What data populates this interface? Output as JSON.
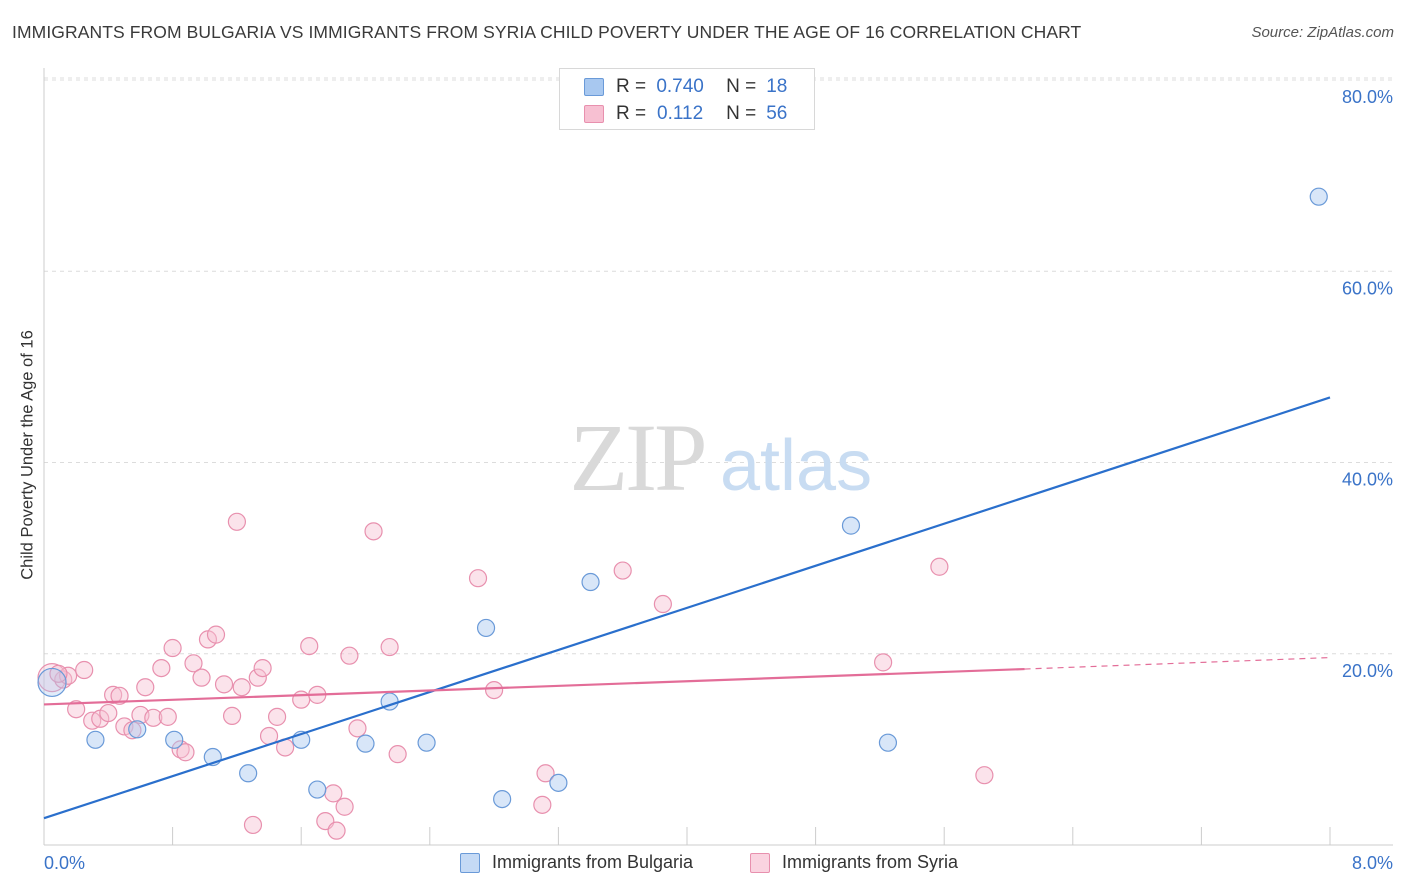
{
  "title": "IMMIGRANTS FROM BULGARIA VS IMMIGRANTS FROM SYRIA CHILD POVERTY UNDER THE AGE OF 16 CORRELATION CHART",
  "source": "Source: ZipAtlas.com",
  "watermark": {
    "zip": "ZIP",
    "atlas": "atlas"
  },
  "legend": {
    "r_label": "R =",
    "n_label": "N =",
    "rows": [
      {
        "r": "0.740",
        "n": "18",
        "color": "#a8c8f0",
        "border": "#6a9ad8"
      },
      {
        "r": "0.112",
        "n": "56",
        "color": "#f7c0d2",
        "border": "#e890ae"
      }
    ]
  },
  "bottom_legend": [
    {
      "label": "Immigrants from Bulgaria",
      "color": "#c5daf5",
      "border": "#6a9ad8"
    },
    {
      "label": "Immigrants from Syria",
      "color": "#fad3e0",
      "border": "#e890ae"
    }
  ],
  "chart_data": {
    "type": "scatter",
    "xlabel": "",
    "ylabel": "Child Poverty Under the Age of 16",
    "xlim": [
      0,
      8
    ],
    "ylim": [
      0,
      80
    ],
    "x_tick_labels": [
      "0.0%",
      "8.0%"
    ],
    "y_ticks": [
      20,
      40,
      60,
      80
    ],
    "y_tick_labels": [
      "20.0%",
      "40.0%",
      "60.0%",
      "80.0%"
    ],
    "grid": true,
    "legend_position": "top-center",
    "series": [
      {
        "name": "Immigrants from Bulgaria",
        "color": "#a8c8f0",
        "edge": "#6a9ad8",
        "line_color": "#2a6fcc",
        "R": 0.74,
        "N": 18,
        "trend": {
          "x": [
            0,
            8
          ],
          "y": [
            2.8,
            46.8
          ]
        },
        "points": [
          {
            "x": 0.05,
            "y": 17.0,
            "big": true
          },
          {
            "x": 0.32,
            "y": 11.0
          },
          {
            "x": 0.58,
            "y": 12.1
          },
          {
            "x": 0.81,
            "y": 11.0
          },
          {
            "x": 1.05,
            "y": 9.2
          },
          {
            "x": 1.27,
            "y": 7.5
          },
          {
            "x": 1.6,
            "y": 11.0
          },
          {
            "x": 1.7,
            "y": 5.8
          },
          {
            "x": 2.0,
            "y": 10.6
          },
          {
            "x": 2.15,
            "y": 15.0
          },
          {
            "x": 2.38,
            "y": 10.7
          },
          {
            "x": 2.75,
            "y": 22.7
          },
          {
            "x": 2.85,
            "y": 4.8
          },
          {
            "x": 3.2,
            "y": 6.5
          },
          {
            "x": 3.4,
            "y": 27.5
          },
          {
            "x": 5.02,
            "y": 33.4
          },
          {
            "x": 5.25,
            "y": 10.7
          },
          {
            "x": 7.93,
            "y": 67.8
          }
        ]
      },
      {
        "name": "Immigrants from Syria",
        "color": "#f7c0d2",
        "edge": "#e890ae",
        "line_color": "#e36d98",
        "R": 0.112,
        "N": 56,
        "trend": {
          "x": [
            0,
            6.1
          ],
          "y": [
            14.7,
            18.4
          ]
        },
        "trend_dashed": {
          "x": [
            6.1,
            8
          ],
          "y": [
            18.4,
            19.6
          ]
        },
        "points": [
          {
            "x": 0.05,
            "y": 17.5,
            "big": true
          },
          {
            "x": 0.12,
            "y": 17.3
          },
          {
            "x": 0.15,
            "y": 17.7
          },
          {
            "x": 0.2,
            "y": 14.2
          },
          {
            "x": 0.25,
            "y": 18.3
          },
          {
            "x": 0.3,
            "y": 13.0
          },
          {
            "x": 0.35,
            "y": 13.2
          },
          {
            "x": 0.4,
            "y": 13.8
          },
          {
            "x": 0.43,
            "y": 15.7
          },
          {
            "x": 0.47,
            "y": 15.6
          },
          {
            "x": 0.5,
            "y": 12.4
          },
          {
            "x": 0.55,
            "y": 12.0
          },
          {
            "x": 0.6,
            "y": 13.6
          },
          {
            "x": 0.63,
            "y": 16.5
          },
          {
            "x": 0.68,
            "y": 13.3
          },
          {
            "x": 0.73,
            "y": 18.5
          },
          {
            "x": 0.77,
            "y": 13.4
          },
          {
            "x": 0.8,
            "y": 20.6
          },
          {
            "x": 0.85,
            "y": 10.0
          },
          {
            "x": 0.88,
            "y": 9.7
          },
          {
            "x": 0.93,
            "y": 19.0
          },
          {
            "x": 0.98,
            "y": 17.5
          },
          {
            "x": 1.02,
            "y": 21.5
          },
          {
            "x": 1.07,
            "y": 22.0
          },
          {
            "x": 1.12,
            "y": 16.8
          },
          {
            "x": 1.17,
            "y": 13.5
          },
          {
            "x": 1.2,
            "y": 33.8
          },
          {
            "x": 1.23,
            "y": 16.5
          },
          {
            "x": 1.3,
            "y": 2.1
          },
          {
            "x": 1.33,
            "y": 17.5
          },
          {
            "x": 1.36,
            "y": 18.5
          },
          {
            "x": 1.4,
            "y": 11.4
          },
          {
            "x": 1.45,
            "y": 13.4
          },
          {
            "x": 1.5,
            "y": 10.2
          },
          {
            "x": 1.6,
            "y": 15.2
          },
          {
            "x": 1.65,
            "y": 20.8
          },
          {
            "x": 1.7,
            "y": 15.7
          },
          {
            "x": 1.75,
            "y": 2.5
          },
          {
            "x": 1.8,
            "y": 5.4
          },
          {
            "x": 1.82,
            "y": 1.5
          },
          {
            "x": 1.87,
            "y": 4.0
          },
          {
            "x": 1.9,
            "y": 19.8
          },
          {
            "x": 1.95,
            "y": 12.2
          },
          {
            "x": 2.05,
            "y": 32.8
          },
          {
            "x": 2.15,
            "y": 20.7
          },
          {
            "x": 2.2,
            "y": 9.5
          },
          {
            "x": 2.7,
            "y": 27.9
          },
          {
            "x": 2.8,
            "y": 16.2
          },
          {
            "x": 3.1,
            "y": 4.2
          },
          {
            "x": 3.12,
            "y": 7.5
          },
          {
            "x": 3.6,
            "y": 28.7
          },
          {
            "x": 3.85,
            "y": 25.2
          },
          {
            "x": 5.22,
            "y": 19.1
          },
          {
            "x": 5.57,
            "y": 29.1
          },
          {
            "x": 5.85,
            "y": 7.3
          },
          {
            "x": 0.09,
            "y": 17.9
          }
        ]
      }
    ]
  }
}
